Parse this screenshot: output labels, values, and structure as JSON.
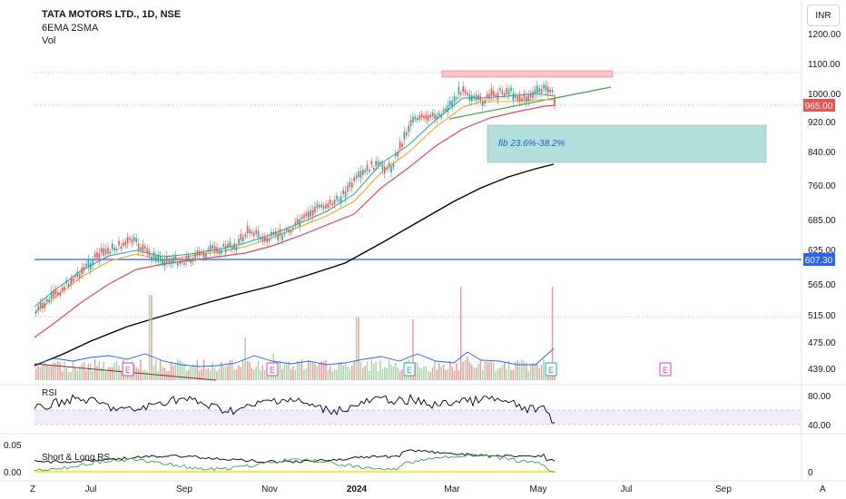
{
  "header": {
    "title": "TATA MOTORS LTD., 1D, NSE",
    "indicators": "6EMA 2SMA",
    "volume_label": "Vol"
  },
  "currency_button": "INR",
  "price_axis": {
    "ticks": [
      "1200.00",
      "1100.00",
      "1000.00",
      "920.00",
      "840.00",
      "760.00",
      "685.00",
      "625.00",
      "565.00",
      "515.00",
      "475.00",
      "439.00"
    ],
    "ticks_values": [
      1200,
      1100,
      1000,
      920,
      840,
      760,
      685,
      625,
      565,
      515,
      475,
      439
    ],
    "last_price_label": "965.00",
    "last_price": 965,
    "support_label": "607.30",
    "support": 607.3
  },
  "rsi_pane": {
    "label": "RSI",
    "ticks": [
      "80.00",
      "40.00"
    ],
    "upper_band": 60,
    "lower_band": 40
  },
  "rs_pane": {
    "label": "Short & Long RS",
    "left_tick": "0.00",
    "left_tick_top": "0.05",
    "right_tick": "0"
  },
  "time_axis": {
    "labels": [
      "Jul",
      "Sep",
      "Nov",
      "2024",
      "Mar",
      "May",
      "Jul",
      "Sep"
    ],
    "left_icon": "Z",
    "right_icon": "A"
  },
  "annotations": {
    "fib_text": "fib 23.6%-38.2%",
    "earnings_marker": "E"
  },
  "colors": {
    "up": "#26a69a",
    "down": "#ef5350",
    "ema6": "#f5a623",
    "ema_mid": "#26a69a",
    "sma_red": "#e04a5f",
    "sma_long": "#000000",
    "support": "#2962ff",
    "trend": "#43a047",
    "fib_fill": "#b2dfdb",
    "resistance_fill": "#f8c8cc",
    "earnings": "#e040a0"
  },
  "chart_data": {
    "type": "candlestick",
    "title": "TATA MOTORS LTD., 1D, NSE",
    "period": "2023-05 to 2024-05",
    "approx_closes": [
      {
        "month": "2023-05",
        "close": 520
      },
      {
        "month": "2023-06",
        "close": 575
      },
      {
        "month": "2023-07",
        "close": 640
      },
      {
        "month": "2023-08",
        "close": 615
      },
      {
        "month": "2023-09",
        "close": 630
      },
      {
        "month": "2023-10",
        "close": 660
      },
      {
        "month": "2023-11",
        "close": 700
      },
      {
        "month": "2023-12",
        "close": 760
      },
      {
        "month": "2024-01",
        "close": 880
      },
      {
        "month": "2024-02",
        "close": 950
      },
      {
        "month": "2024-03",
        "close": 990
      },
      {
        "month": "2024-04",
        "close": 1010
      },
      {
        "month": "2024-05",
        "close": 965
      }
    ],
    "horizontal_levels": [
      607.3,
      965
    ],
    "resistance_zone": [
      1060,
      1080
    ],
    "fib_zone": [
      820,
      905
    ],
    "ylim": [
      430,
      1230
    ]
  }
}
